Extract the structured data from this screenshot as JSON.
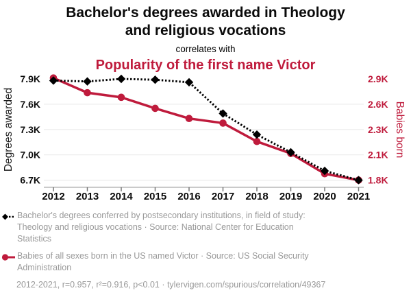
{
  "header": {
    "title": "Bachelor's degrees awarded in Theology and religious vocations",
    "connector": "correlates with",
    "subtitle": "Popularity of the first name Victor"
  },
  "colors": {
    "red": "#bf1b3c",
    "black": "#000000",
    "muted_text": "#999999",
    "gridline": "#ececec",
    "axis_line": "#aaaaaa"
  },
  "chart_data": {
    "type": "line",
    "x": [
      2012,
      2013,
      2014,
      2015,
      2016,
      2017,
      2018,
      2019,
      2020,
      2021
    ],
    "x_ticks": [
      "2012",
      "2013",
      "2014",
      "2015",
      "2016",
      "2017",
      "2018",
      "2019",
      "2020",
      "2021"
    ],
    "series": [
      {
        "name": "Bachelor's degrees conferred in Theology and religious vocations",
        "axis": "left",
        "color": "#000000",
        "line_style": "dotted",
        "marker": "diamond",
        "values": [
          7880,
          7870,
          7900,
          7890,
          7860,
          7490,
          7240,
          7030,
          6810,
          6700
        ]
      },
      {
        "name": "Babies of all sexes born in the US named Victor",
        "axis": "right",
        "color": "#bf1b3c",
        "line_style": "solid",
        "marker": "circle",
        "values": [
          2910,
          2750,
          2700,
          2580,
          2470,
          2420,
          2220,
          2090,
          1870,
          1800
        ]
      }
    ],
    "left_axis": {
      "label": "Degrees awarded",
      "ticks": [
        "7.9K",
        "7.6K",
        "7.3K",
        "7.0K",
        "6.7K"
      ],
      "range": [
        6700,
        7900
      ]
    },
    "right_axis": {
      "label": "Babies born",
      "ticks": [
        "2.9K",
        "2.6K",
        "2.3K",
        "2.1K",
        "1.8K"
      ],
      "range": [
        1800,
        2900
      ]
    },
    "grid": true,
    "legend_position": "bottom"
  },
  "legend": {
    "items": [
      {
        "label": "Bachelor's degrees conferred by postsecondary institutions, in field of study: Theology and religious vocations · Source: National Center for Education Statistics"
      },
      {
        "label": "Babies of all sexes born in the US named Victor · Source: US Social Security Administration"
      }
    ],
    "footer": "2012-2021, r=0.957, r²=0.916, p<0.01 · tylervigen.com/spurious/correlation/49367"
  }
}
